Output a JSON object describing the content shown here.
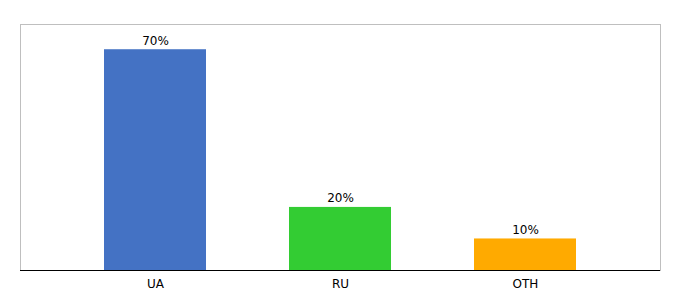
{
  "chart_data": {
    "type": "bar",
    "categories": [
      "UA",
      "RU",
      "OTH"
    ],
    "values": [
      70,
      20,
      10
    ],
    "value_labels": [
      "70%",
      "20%",
      "10%"
    ],
    "colors": [
      "#4472c4",
      "#33cc33",
      "#ffaa00"
    ],
    "ylim": [
      0,
      78
    ],
    "data_labels": true,
    "tick_labels": "x"
  }
}
